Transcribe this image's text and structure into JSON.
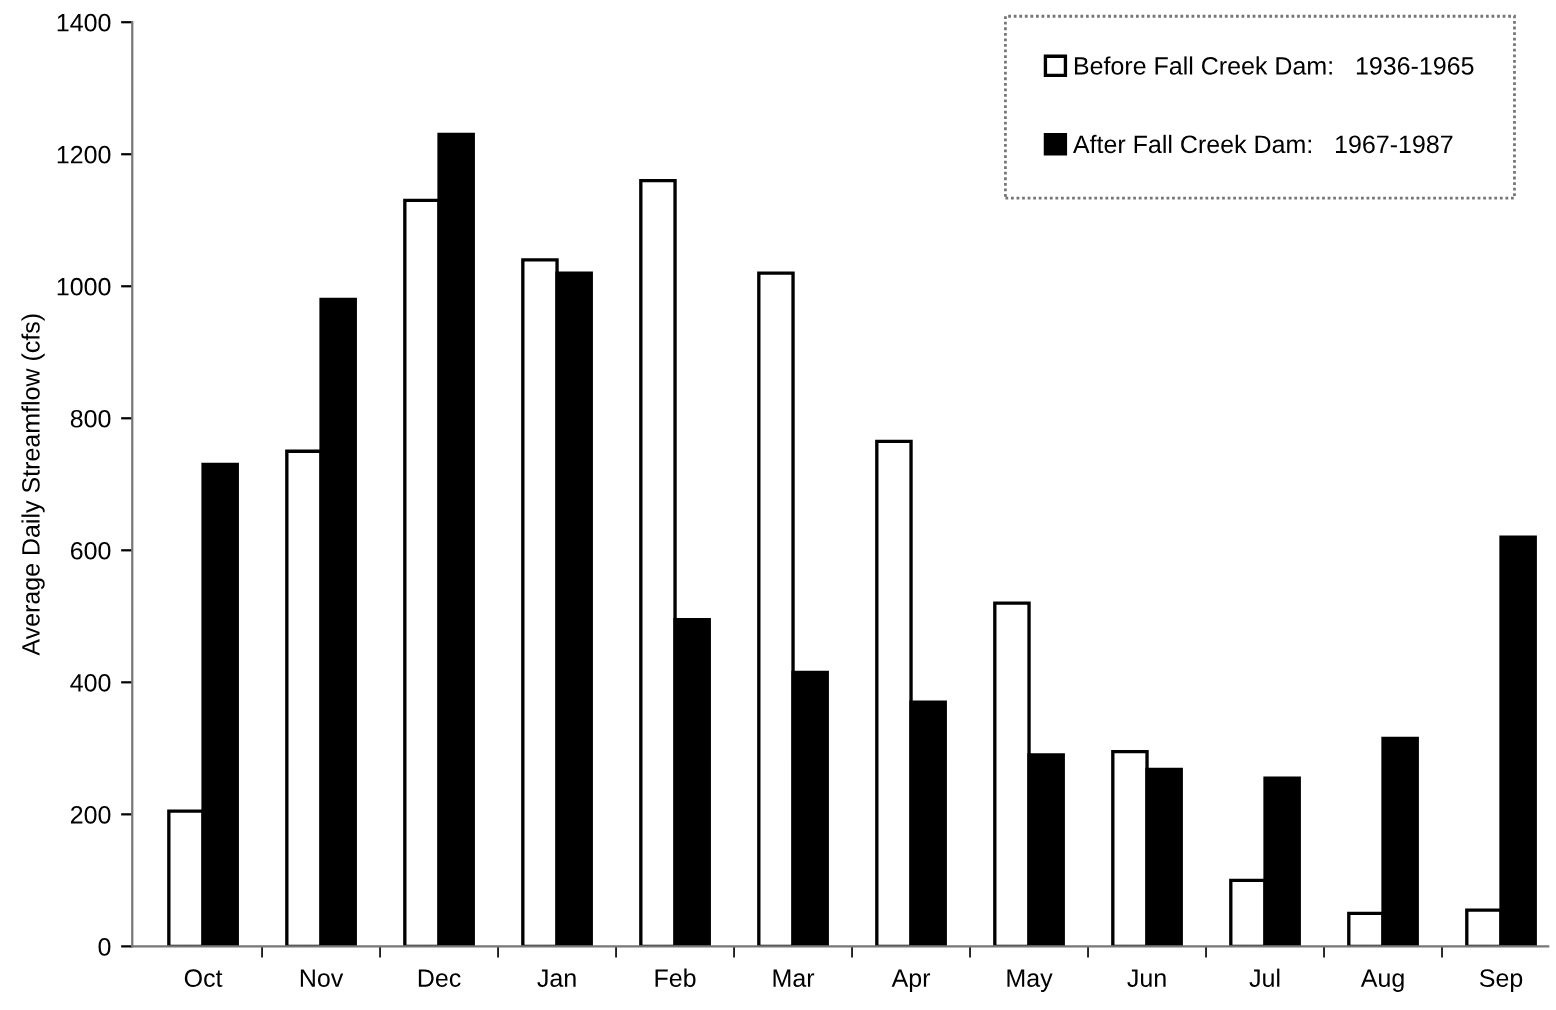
{
  "chart_data": {
    "type": "bar",
    "ylabel": "Average Daily Streamflow (cfs)",
    "categories": [
      "Oct",
      "Nov",
      "Dec",
      "Jan",
      "Feb",
      "Mar",
      "Apr",
      "May",
      "Jun",
      "Jul",
      "Aug",
      "Sep"
    ],
    "series": [
      {
        "name": "Before Fall Creek Dam:   1936-1965",
        "color": "#ffffff",
        "values": [
          205,
          750,
          1130,
          1040,
          1160,
          1020,
          765,
          520,
          295,
          100,
          50,
          55
        ]
      },
      {
        "name": "After Fall Creek Dam:   1967-1987",
        "color": "#000000",
        "values": [
          730,
          980,
          1230,
          1020,
          495,
          415,
          370,
          290,
          268,
          255,
          315,
          620
        ]
      }
    ],
    "ylim": [
      0,
      1400
    ],
    "yticks": [
      0,
      200,
      400,
      600,
      800,
      1000,
      1200,
      1400
    ],
    "grid": false,
    "legend": "top right"
  }
}
